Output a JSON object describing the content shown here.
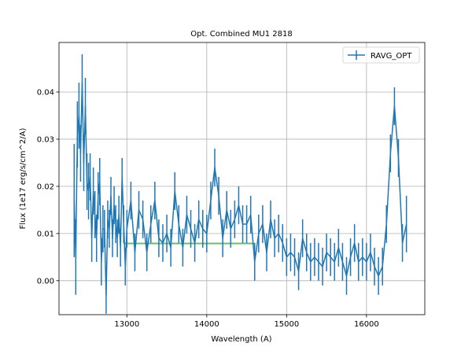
{
  "chart_data": {
    "type": "line",
    "title": "Opt. Combined MU1 2818",
    "xlabel": "Wavelength (A)",
    "ylabel": "Flux (1e17 erg/s/cm^2/A)",
    "xlim": [
      12150,
      16730
    ],
    "ylim": [
      -0.0072,
      0.0505
    ],
    "x_ticks": [
      13000,
      14000,
      15000,
      16000
    ],
    "x_tick_labels": [
      "13000",
      "14000",
      "15000",
      "16000"
    ],
    "y_ticks": [
      0.0,
      0.01,
      0.02,
      0.03,
      0.04
    ],
    "y_tick_labels": [
      "0.00",
      "0.01",
      "0.02",
      "0.03",
      "0.04"
    ],
    "grid": true,
    "legend": {
      "position": "top-right",
      "entries": [
        "RAVG_OPT"
      ]
    },
    "colors": {
      "series": "#1f77b4",
      "band": "#2ca02c",
      "grid": "#b0b0b0"
    },
    "series": [
      {
        "name": "RAVG_OPT",
        "x": [
          12340,
          12360,
          12380,
          12400,
          12420,
          12440,
          12460,
          12480,
          12500,
          12520,
          12540,
          12560,
          12580,
          12600,
          12620,
          12640,
          12660,
          12680,
          12700,
          12720,
          12740,
          12760,
          12780,
          12800,
          12820,
          12840,
          12860,
          12880,
          12900,
          12920,
          12940,
          12960,
          12980,
          13000,
          13050,
          13100,
          13150,
          13200,
          13250,
          13300,
          13350,
          13400,
          13450,
          13500,
          13550,
          13600,
          13650,
          13700,
          13750,
          13800,
          13850,
          13900,
          13950,
          14000,
          14050,
          14100,
          14150,
          14200,
          14250,
          14300,
          14350,
          14400,
          14450,
          14500,
          14550,
          14600,
          14650,
          14700,
          14750,
          14800,
          14850,
          14900,
          14950,
          15000,
          15050,
          15100,
          15150,
          15200,
          15250,
          15300,
          15350,
          15400,
          15450,
          15500,
          15550,
          15600,
          15650,
          15700,
          15750,
          15800,
          15850,
          15900,
          15950,
          16000,
          16050,
          16100,
          16150,
          16200,
          16250,
          16300,
          16350,
          16400,
          16450,
          16500
        ],
        "y": [
          0.017,
          0.005,
          0.031,
          0.035,
          0.027,
          0.042,
          0.025,
          0.037,
          0.021,
          0.019,
          0.022,
          0.009,
          0.019,
          0.014,
          0.009,
          0.018,
          0.021,
          0.004,
          0.011,
          0.011,
          -0.003,
          0.013,
          0.011,
          0.018,
          0.009,
          0.016,
          0.012,
          0.009,
          0.014,
          0.007,
          0.022,
          0.012,
          0.003,
          0.011,
          0.017,
          0.006,
          0.015,
          0.013,
          0.006,
          0.012,
          0.017,
          0.009,
          0.008,
          0.01,
          0.007,
          0.019,
          0.012,
          0.007,
          0.014,
          0.011,
          0.008,
          0.013,
          0.011,
          0.01,
          0.017,
          0.024,
          0.018,
          0.009,
          0.015,
          0.011,
          0.013,
          0.016,
          0.012,
          0.012,
          0.014,
          0.004,
          0.01,
          0.012,
          0.006,
          0.013,
          0.009,
          0.01,
          0.008,
          0.005,
          0.006,
          0.005,
          0.002,
          0.009,
          0.006,
          0.004,
          0.005,
          0.004,
          0.003,
          0.006,
          0.005,
          0.004,
          0.007,
          0.004,
          0.001,
          0.005,
          0.008,
          0.004,
          0.005,
          0.004,
          0.006,
          0.003,
          0.001,
          0.003,
          0.012,
          0.027,
          0.037,
          0.026,
          0.008,
          0.012
        ],
        "err": [
          0.012,
          0.008,
          0.007,
          0.007,
          0.006,
          0.006,
          0.006,
          0.006,
          0.006,
          0.006,
          0.005,
          0.005,
          0.005,
          0.005,
          0.005,
          0.005,
          0.005,
          0.005,
          0.005,
          0.004,
          0.004,
          0.004,
          0.004,
          0.004,
          0.004,
          0.004,
          0.004,
          0.004,
          0.004,
          0.004,
          0.004,
          0.004,
          0.004,
          0.004,
          0.004,
          0.004,
          0.004,
          0.004,
          0.004,
          0.004,
          0.004,
          0.004,
          0.004,
          0.004,
          0.004,
          0.004,
          0.004,
          0.004,
          0.004,
          0.004,
          0.004,
          0.004,
          0.004,
          0.004,
          0.004,
          0.004,
          0.004,
          0.004,
          0.004,
          0.004,
          0.004,
          0.004,
          0.004,
          0.004,
          0.004,
          0.004,
          0.004,
          0.004,
          0.004,
          0.004,
          0.004,
          0.004,
          0.004,
          0.004,
          0.004,
          0.004,
          0.004,
          0.004,
          0.004,
          0.004,
          0.004,
          0.004,
          0.004,
          0.004,
          0.004,
          0.004,
          0.004,
          0.004,
          0.004,
          0.004,
          0.004,
          0.004,
          0.004,
          0.004,
          0.004,
          0.004,
          0.004,
          0.004,
          0.004,
          0.004,
          0.004,
          0.004,
          0.004,
          0.006
        ]
      }
    ],
    "band": {
      "x": [
        12960,
        14600
      ],
      "y": 0.0079
    }
  }
}
